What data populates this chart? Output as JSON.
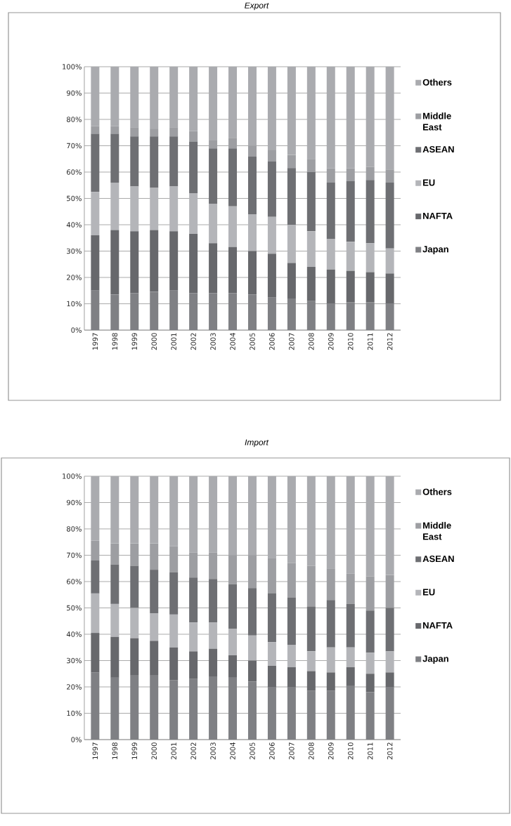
{
  "chart_data": [
    {
      "type": "bar",
      "title": "Export",
      "stacked": true,
      "grid": "y",
      "legend": "right",
      "categories": [
        "1997",
        "1998",
        "1999",
        "2000",
        "2001",
        "2002",
        "2003",
        "2004",
        "2005",
        "2006",
        "2007",
        "2008",
        "2009",
        "2010",
        "2011",
        "2012"
      ],
      "ylim": [
        0,
        100
      ],
      "yticks": [
        {
          "value": 0,
          "label": "0%"
        },
        {
          "value": 10,
          "label": "10%"
        },
        {
          "value": 20,
          "label": "20%"
        },
        {
          "value": 30,
          "label": "30%"
        },
        {
          "value": 40,
          "label": "40%"
        },
        {
          "value": 50,
          "label": "50%"
        },
        {
          "value": 60,
          "label": "60%"
        },
        {
          "value": 70,
          "label": "70%"
        },
        {
          "value": 80,
          "label": "80%"
        },
        {
          "value": 90,
          "label": "90%"
        },
        {
          "value": 100,
          "label": "100%"
        }
      ],
      "series": [
        {
          "name": "Japan",
          "color": "#7f8084",
          "values": [
            15,
            13.5,
            14,
            14.5,
            15,
            14,
            14,
            14,
            13.5,
            12.5,
            12,
            11,
            10,
            10.5,
            10.5,
            10
          ]
        },
        {
          "name": "NAFTA",
          "color": "#67686c",
          "values": [
            21,
            24.5,
            23.5,
            23.5,
            22.5,
            22.5,
            19,
            17.5,
            16.5,
            16.5,
            13.5,
            13,
            13,
            12,
            11.5,
            11.5
          ]
        },
        {
          "name": "EU",
          "color": "#b4b5b9",
          "values": [
            16.5,
            18,
            17,
            16,
            17,
            15.5,
            15,
            15.5,
            14,
            14,
            14.5,
            13.5,
            11.5,
            11,
            11,
            9.5
          ]
        },
        {
          "name": "ASEAN",
          "color": "#6e6f73",
          "values": [
            22,
            18.5,
            19,
            19.5,
            19,
            19.5,
            21,
            22,
            22,
            21,
            21.5,
            22.5,
            21.5,
            23,
            24,
            25
          ]
        },
        {
          "name": "Middle East",
          "color": "#9d9ea2",
          "values": [
            3,
            3,
            3.5,
            3,
            3.5,
            4,
            3,
            4,
            4,
            4.5,
            5,
            5,
            5.5,
            5,
            5,
            5
          ]
        },
        {
          "name": "Others",
          "color": "#aaabaf",
          "values": [
            22.5,
            22.5,
            23,
            23.5,
            23,
            24.5,
            28,
            27,
            30,
            31.5,
            33.5,
            35,
            38.5,
            38.5,
            38,
            39
          ]
        }
      ]
    },
    {
      "type": "bar",
      "title": "Import",
      "stacked": true,
      "grid": "y",
      "legend": "right",
      "categories": [
        "1997",
        "1998",
        "1999",
        "2000",
        "2001",
        "2002",
        "2003",
        "2004",
        "2005",
        "2006",
        "2007",
        "2008",
        "2009",
        "2010",
        "2011",
        "2012"
      ],
      "ylim": [
        0,
        100
      ],
      "yticks": [
        {
          "value": 0,
          "label": "0%"
        },
        {
          "value": 10,
          "label": "10%"
        },
        {
          "value": 20,
          "label": "20%"
        },
        {
          "value": 30,
          "label": "30%"
        },
        {
          "value": 40,
          "label": "40%"
        },
        {
          "value": 50,
          "label": "50%"
        },
        {
          "value": 60,
          "label": "60%"
        },
        {
          "value": 70,
          "label": "70%"
        },
        {
          "value": 80,
          "label": "80%"
        },
        {
          "value": 90,
          "label": "90%"
        },
        {
          "value": 100,
          "label": "100%"
        }
      ],
      "series": [
        {
          "name": "Japan",
          "color": "#7f8084",
          "values": [
            25.5,
            23.5,
            24.5,
            24.5,
            22.5,
            23,
            24,
            23.5,
            22,
            20,
            20,
            18.5,
            18.5,
            20.5,
            18,
            20
          ]
        },
        {
          "name": "NAFTA",
          "color": "#67686c",
          "values": [
            15,
            15.5,
            14,
            13,
            12.5,
            10.5,
            10.5,
            8.5,
            8,
            8,
            7.5,
            7.5,
            7,
            7,
            7,
            5.5
          ]
        },
        {
          "name": "EU",
          "color": "#b4b5b9",
          "values": [
            15,
            12.5,
            11.5,
            10.5,
            12.5,
            11,
            10,
            10,
            9.5,
            9,
            8.5,
            7.5,
            9.5,
            7.5,
            8,
            8
          ]
        },
        {
          "name": "ASEAN",
          "color": "#6e6f73",
          "values": [
            12.5,
            15,
            16,
            16.5,
            16,
            17,
            16.5,
            17,
            18,
            18.5,
            18,
            17,
            18,
            16.5,
            16,
            16.5
          ]
        },
        {
          "name": "Middle East",
          "color": "#9d9ea2",
          "values": [
            7.5,
            8,
            8.5,
            10,
            10,
            9.5,
            10,
            11,
            12.5,
            13.5,
            13,
            15.5,
            12,
            11.5,
            13,
            12.5
          ]
        },
        {
          "name": "Others",
          "color": "#aaabaf",
          "values": [
            24.5,
            25.5,
            25.5,
            25.5,
            26.5,
            29,
            29,
            30,
            30,
            31,
            33,
            34,
            35,
            37,
            38,
            37.5
          ]
        }
      ]
    }
  ]
}
